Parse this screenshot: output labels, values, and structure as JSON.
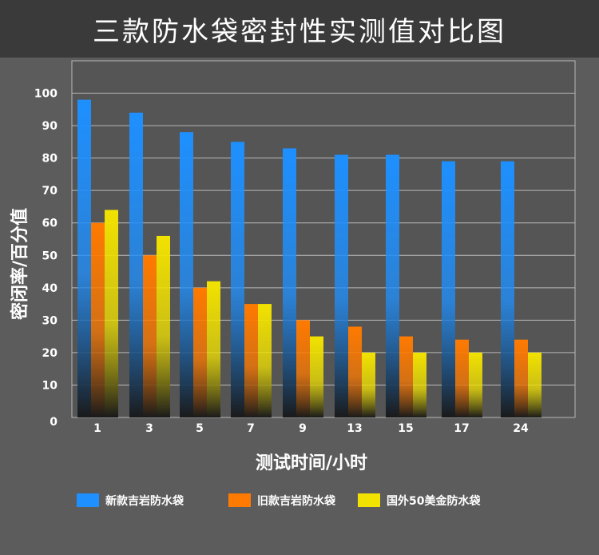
{
  "title": "三款防水袋密封性实测值对比图",
  "colors": {
    "background": "#5c5c5c",
    "plot_background": "#555555",
    "grid": "#b8b8b8",
    "series_blue": "#1e90ff",
    "series_orange": "#ff7a00",
    "series_yellow": "#f2e200"
  },
  "chart_data": {
    "type": "bar",
    "title": "三款防水袋密封性实测值对比图",
    "xlabel": "测试时间/小时",
    "ylabel": "密闭率/百分值",
    "ylim": [
      0,
      110
    ],
    "yticks": [
      "0",
      "10",
      "20",
      "30",
      "40",
      "50",
      "60",
      "70",
      "80",
      "90",
      "100"
    ],
    "categories": [
      "1",
      "3",
      "5",
      "7",
      "9",
      "13",
      "15",
      "17",
      "24"
    ],
    "grid": true,
    "legend_position": "bottom",
    "series": [
      {
        "name": "新款吉岩防水袋",
        "color": "#1e90ff",
        "values": [
          98,
          94,
          88,
          85,
          83,
          81,
          81,
          79,
          79
        ]
      },
      {
        "name": "旧款吉岩防水袋",
        "color": "#ff7a00",
        "values": [
          60,
          50,
          40,
          35,
          30,
          28,
          25,
          24,
          24
        ]
      },
      {
        "name": "国外50美金防水袋",
        "color": "#f2e200",
        "values": [
          64,
          56,
          42,
          35,
          25,
          20,
          20,
          20,
          20
        ]
      }
    ]
  }
}
